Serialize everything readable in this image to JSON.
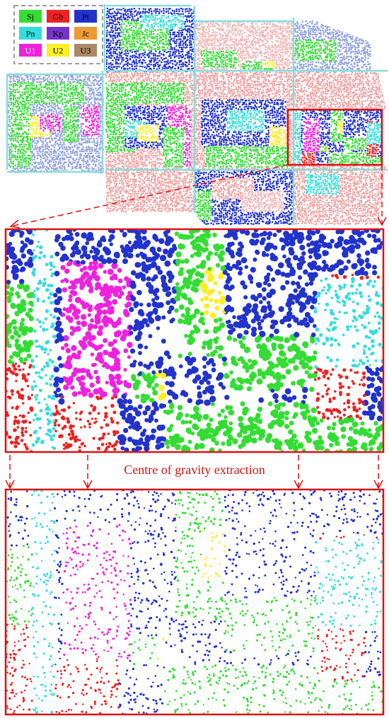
{
  "legend": {
    "items": [
      {
        "label": "Sj",
        "color": "#33dd33",
        "text_color": "#000000"
      },
      {
        "label": "Gb",
        "color": "#ee2222",
        "text_color": "#000000"
      },
      {
        "label": "Pt",
        "color": "#2233cc",
        "text_color": "#000000"
      },
      {
        "label": "Pn",
        "color": "#33dddd",
        "text_color": "#000000"
      },
      {
        "label": "Kp",
        "color": "#7733cc",
        "text_color": "#000000"
      },
      {
        "label": "Jc",
        "color": "#ee9933",
        "text_color": "#000000"
      },
      {
        "label": "U1",
        "color": "#ee22dd",
        "text_color": "#ffffff"
      },
      {
        "label": "U2",
        "color": "#ffee22",
        "text_color": "#000000"
      },
      {
        "label": "U3",
        "color": "#aa8866",
        "text_color": "#000000"
      }
    ]
  },
  "caption": "Centre of gravity extraction",
  "colors": {
    "frame": "#dd1111",
    "arrow": "#dd1111",
    "legend_border": "#666666",
    "tile_border": "#88dddd",
    "background": "#ffffff"
  }
}
